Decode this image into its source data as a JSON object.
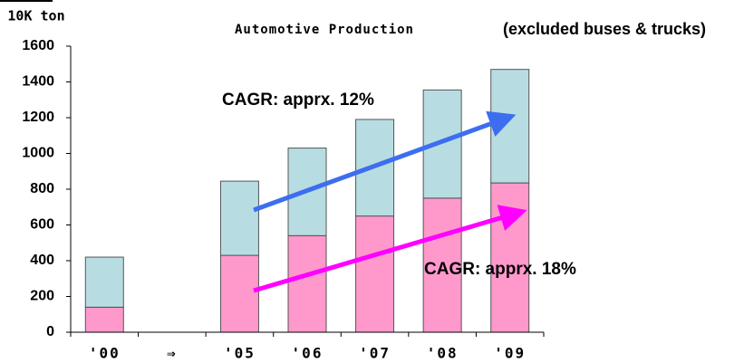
{
  "chart_data": {
    "type": "bar",
    "stacked": true,
    "title": "Automotive Production",
    "subtitle": "(excluded buses & trucks)",
    "y_label": "10K ton",
    "categories": [
      "'00",
      "⇒",
      "'05",
      "'06",
      "'07",
      "'08",
      "'09"
    ],
    "series": [
      {
        "color": "#ff99cc",
        "values": [
          140,
          null,
          430,
          540,
          650,
          750,
          835
        ]
      },
      {
        "color": "#b7dde2",
        "values": [
          280,
          null,
          415,
          490,
          540,
          605,
          635
        ]
      }
    ],
    "ylim": [
      0,
      1600
    ],
    "yticks": [
      0,
      200,
      400,
      600,
      800,
      1000,
      1200,
      1400,
      1600
    ],
    "annotations": [
      "CAGR: apprx. 12%",
      "CAGR: apprx. 18%"
    ]
  }
}
